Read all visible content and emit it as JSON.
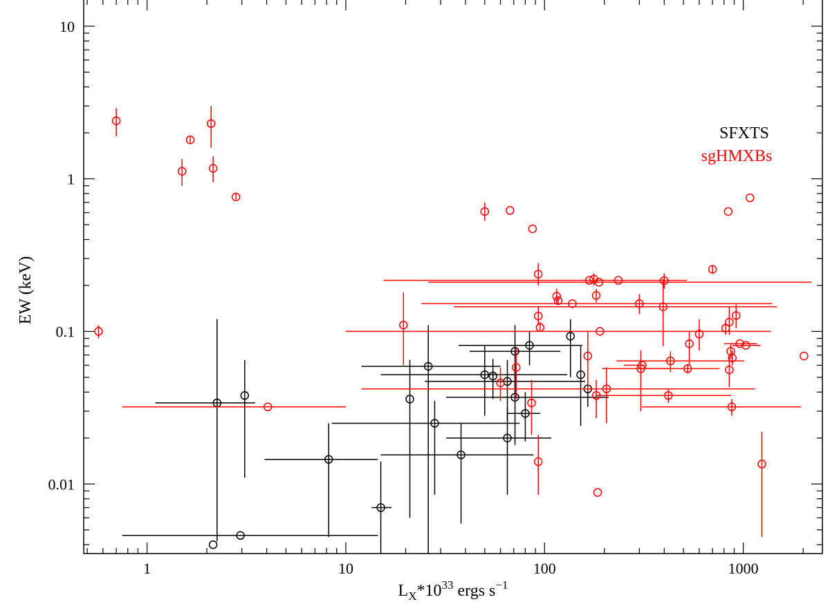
{
  "chart_data": {
    "type": "scatter",
    "xlabel": {
      "base": "L",
      "sub": "X",
      "mid": "*10",
      "sup": "33",
      "tail": " ergs s",
      "tail_sup": "−1"
    },
    "ylabel": "EW (keV)",
    "xscale": "log",
    "yscale": "log",
    "xlim": [
      0.48,
      2500
    ],
    "ylim": [
      0.0035,
      15
    ],
    "xticks": [
      {
        "value": 1,
        "label": "1"
      },
      {
        "value": 10,
        "label": "10"
      },
      {
        "value": 100,
        "label": "100"
      },
      {
        "value": 1000,
        "label": "1000"
      }
    ],
    "yticks": [
      {
        "value": 0.01,
        "label": "0.01"
      },
      {
        "value": 0.1,
        "label": "0.1"
      },
      {
        "value": 1,
        "label": "1"
      },
      {
        "value": 10,
        "label": "10"
      }
    ],
    "legend_placement": "upper-right",
    "series": [
      {
        "name": "SFXTS",
        "color": "#000000",
        "marker": "open-circle",
        "points": [
          {
            "x": 2.25,
            "y": 0.034,
            "xerr": [
              1.1,
              3.5
            ],
            "yerr": [
              0.0042,
              0.12
            ]
          },
          {
            "x": 3.1,
            "y": 0.038,
            "xerr": null,
            "yerr": [
              0.011,
              0.065
            ]
          },
          {
            "x": 2.15,
            "y": 0.004,
            "xerr": null,
            "yerr": null
          },
          {
            "x": 2.95,
            "y": 0.0046,
            "xerr": [
              0.75,
              14.5
            ],
            "yerr": null
          },
          {
            "x": 8.2,
            "y": 0.0145,
            "xerr": [
              3.9,
              14.5
            ],
            "yerr": [
              0.0045,
              0.025
            ]
          },
          {
            "x": 15,
            "y": 0.007,
            "xerr": [
              13.5,
              17
            ],
            "yerr": [
              0.0035,
              0.014
            ]
          },
          {
            "x": 21,
            "y": 0.036,
            "xerr": null,
            "yerr": [
              0.006,
              0.065
            ]
          },
          {
            "x": 26,
            "y": 0.059,
            "xerr": [
              12,
              60
            ],
            "yerr": [
              0.0035,
              0.11
            ]
          },
          {
            "x": 28,
            "y": 0.025,
            "xerr": [
              8.5,
              75
            ],
            "yerr": [
              0.0085,
              0.035
            ]
          },
          {
            "x": 38,
            "y": 0.0155,
            "xerr": [
              15,
              88
            ],
            "yerr": [
              0.0055,
              0.025
            ]
          },
          {
            "x": 50,
            "y": 0.052,
            "xerr": [
              15,
              130
            ],
            "yerr": [
              0.028,
              0.08
            ]
          },
          {
            "x": 55,
            "y": 0.051,
            "xerr": null,
            "yerr": [
              0.036,
              0.066
            ]
          },
          {
            "x": 65,
            "y": 0.02,
            "xerr": [
              32,
              108
            ],
            "yerr": [
              0.0085,
              0.032
            ]
          },
          {
            "x": 65,
            "y": 0.047,
            "xerr": [
              25,
              160
            ],
            "yerr": [
              0.026,
              0.065
            ]
          },
          {
            "x": 71,
            "y": 0.074,
            "xerr": [
              42,
              120
            ],
            "yerr": [
              0.04,
              0.11
            ]
          },
          {
            "x": 71,
            "y": 0.037,
            "xerr": [
              32,
              210
            ],
            "yerr": [
              0.018,
              0.06
            ]
          },
          {
            "x": 80,
            "y": 0.029,
            "xerr": [
              65,
              95
            ],
            "yerr": [
              0.019,
              0.04
            ]
          },
          {
            "x": 84,
            "y": 0.081,
            "xerr": [
              37,
              155
            ],
            "yerr": [
              0.06,
              0.1
            ]
          },
          {
            "x": 135,
            "y": 0.093,
            "xerr": null,
            "yerr": [
              0.05,
              0.12
            ]
          },
          {
            "x": 152,
            "y": 0.052,
            "xerr": null,
            "yerr": [
              0.024,
              0.08
            ]
          },
          {
            "x": 165,
            "y": 0.042,
            "xerr": [
              22,
              260
            ],
            "yerr": [
              0.032,
              0.052
            ]
          }
        ]
      },
      {
        "name": "sgHMXBs",
        "color": "#ff0000",
        "marker": "open-circle",
        "points": [
          {
            "x": 0.57,
            "y": 0.1,
            "xerr": null,
            "yerr": [
              0.09,
              0.11
            ]
          },
          {
            "x": 0.7,
            "y": 2.4,
            "xerr": null,
            "yerr": [
              1.9,
              2.9
            ]
          },
          {
            "x": 1.65,
            "y": 1.8,
            "xerr": null,
            "yerr": [
              1.7,
              1.9
            ]
          },
          {
            "x": 1.5,
            "y": 1.12,
            "xerr": null,
            "yerr": [
              0.9,
              1.35
            ]
          },
          {
            "x": 2.1,
            "y": 2.3,
            "xerr": null,
            "yerr": [
              1.6,
              3.0
            ]
          },
          {
            "x": 2.15,
            "y": 1.17,
            "xerr": null,
            "yerr": [
              0.95,
              1.4
            ]
          },
          {
            "x": 2.8,
            "y": 0.76,
            "xerr": null,
            "yerr": [
              0.73,
              0.8
            ]
          },
          {
            "x": 4.05,
            "y": 0.032,
            "xerr": [
              0.75,
              10
            ],
            "yerr": null
          },
          {
            "x": 19.5,
            "y": 0.11,
            "xerr": null,
            "yerr": [
              0.06,
              0.18
            ]
          },
          {
            "x": 50,
            "y": 0.61,
            "xerr": null,
            "yerr": [
              0.53,
              0.7
            ]
          },
          {
            "x": 67,
            "y": 0.62,
            "xerr": null,
            "yerr": null
          },
          {
            "x": 87,
            "y": 0.47,
            "xerr": null,
            "yerr": null
          },
          {
            "x": 60,
            "y": 0.046,
            "xerr": null,
            "yerr": [
              0.035,
              0.058
            ]
          },
          {
            "x": 72,
            "y": 0.058,
            "xerr": null,
            "yerr": [
              0.036,
              0.078
            ]
          },
          {
            "x": 86,
            "y": 0.034,
            "xerr": null,
            "yerr": [
              0.021,
              0.048
            ]
          },
          {
            "x": 93,
            "y": 0.014,
            "xerr": null,
            "yerr": [
              0.0085,
              0.021
            ]
          },
          {
            "x": 93,
            "y": 0.237,
            "xerr": null,
            "yerr": [
              0.2,
              0.28
            ]
          },
          {
            "x": 93,
            "y": 0.126,
            "xerr": null,
            "yerr": [
              0.11,
              0.145
            ]
          },
          {
            "x": 95,
            "y": 0.106,
            "xerr": null,
            "yerr": [
              0.1,
              0.115
            ]
          },
          {
            "x": 115,
            "y": 0.17,
            "xerr": null,
            "yerr": [
              0.15,
              0.19
            ]
          },
          {
            "x": 117,
            "y": 0.159,
            "xerr": null,
            "yerr": [
              0.15,
              0.17
            ]
          },
          {
            "x": 138,
            "y": 0.152,
            "xerr": [
              24,
              1400
            ],
            "yerr": null
          },
          {
            "x": 165,
            "y": 0.069,
            "xerr": null,
            "yerr": [
              0.04,
              0.1
            ]
          },
          {
            "x": 168,
            "y": 0.216,
            "xerr": [
              15.5,
              520
            ],
            "yerr": null
          },
          {
            "x": 177,
            "y": 0.22,
            "xerr": null,
            "yerr": [
              0.2,
              0.24
            ]
          },
          {
            "x": 182,
            "y": 0.172,
            "xerr": null,
            "yerr": [
              0.155,
              0.19
            ]
          },
          {
            "x": 182,
            "y": 0.038,
            "xerr": null,
            "yerr": [
              0.027,
              0.048
            ]
          },
          {
            "x": 188,
            "y": 0.21,
            "xerr": [
              26,
              2200
            ],
            "yerr": null
          },
          {
            "x": 190,
            "y": 0.1,
            "xerr": [
              10,
              1380
            ],
            "yerr": null
          },
          {
            "x": 185,
            "y": 0.0088,
            "xerr": null,
            "yerr": null
          },
          {
            "x": 205,
            "y": 0.042,
            "xerr": [
              12,
              1140
            ],
            "yerr": [
              0.025,
              0.058
            ]
          },
          {
            "x": 235,
            "y": 0.216,
            "xerr": null,
            "yerr": null
          },
          {
            "x": 300,
            "y": 0.152,
            "xerr": null,
            "yerr": [
              0.13,
              0.175
            ]
          },
          {
            "x": 305,
            "y": 0.057,
            "xerr": [
              195,
              420
            ],
            "yerr": [
              0.03,
              0.075
            ]
          },
          {
            "x": 310,
            "y": 0.06,
            "xerr": [
              250,
              320
            ],
            "yerr": null
          },
          {
            "x": 395,
            "y": 0.145,
            "xerr": [
              35,
              1480
            ],
            "yerr": [
              0.08,
              0.22
            ]
          },
          {
            "x": 400,
            "y": 0.215,
            "xerr": null,
            "yerr": [
              0.19,
              0.24
            ]
          },
          {
            "x": 420,
            "y": 0.038,
            "xerr": [
              180,
              870
            ],
            "yerr": [
              0.034,
              0.042
            ]
          },
          {
            "x": 430,
            "y": 0.064,
            "xerr": [
              230,
              1010
            ],
            "yerr": [
              0.054,
              0.074
            ]
          },
          {
            "x": 525,
            "y": 0.057,
            "xerr": [
              300,
              760
            ],
            "yerr": [
              0.053,
              0.061
            ]
          },
          {
            "x": 535,
            "y": 0.083,
            "xerr": null,
            "yerr": [
              0.06,
              0.1
            ]
          },
          {
            "x": 600,
            "y": 0.096,
            "xerr": null,
            "yerr": [
              0.075,
              0.12
            ]
          },
          {
            "x": 700,
            "y": 0.255,
            "xerr": null,
            "yerr": [
              0.24,
              0.27
            ]
          },
          {
            "x": 815,
            "y": 0.105,
            "xerr": null,
            "yerr": [
              0.095,
              0.115
            ]
          },
          {
            "x": 840,
            "y": 0.61,
            "xerr": null,
            "yerr": null
          },
          {
            "x": 850,
            "y": 0.115,
            "xerr": null,
            "yerr": [
              0.095,
              0.145
            ]
          },
          {
            "x": 850,
            "y": 0.056,
            "xerr": null,
            "yerr": [
              0.043,
              0.07
            ]
          },
          {
            "x": 865,
            "y": 0.074,
            "xerr": null,
            "yerr": [
              0.066,
              0.082
            ]
          },
          {
            "x": 875,
            "y": 0.032,
            "xerr": [
              310,
              1950
            ],
            "yerr": [
              0.028,
              0.036
            ]
          },
          {
            "x": 880,
            "y": 0.067,
            "xerr": null,
            "yerr": [
              0.06,
              0.075
            ]
          },
          {
            "x": 920,
            "y": 0.127,
            "xerr": null,
            "yerr": [
              0.105,
              0.15
            ]
          },
          {
            "x": 960,
            "y": 0.083,
            "xerr": [
              800,
              1170
            ],
            "yerr": null
          },
          {
            "x": 1030,
            "y": 0.081,
            "xerr": [
              880,
              1220
            ],
            "yerr": null
          },
          {
            "x": 1080,
            "y": 0.75,
            "xerr": null,
            "yerr": null
          },
          {
            "x": 1240,
            "y": 0.0135,
            "xerr": null,
            "yerr": [
              0.0045,
              0.022
            ]
          },
          {
            "x": 2020,
            "y": 0.069,
            "xerr": null,
            "yerr": null
          }
        ]
      }
    ]
  }
}
